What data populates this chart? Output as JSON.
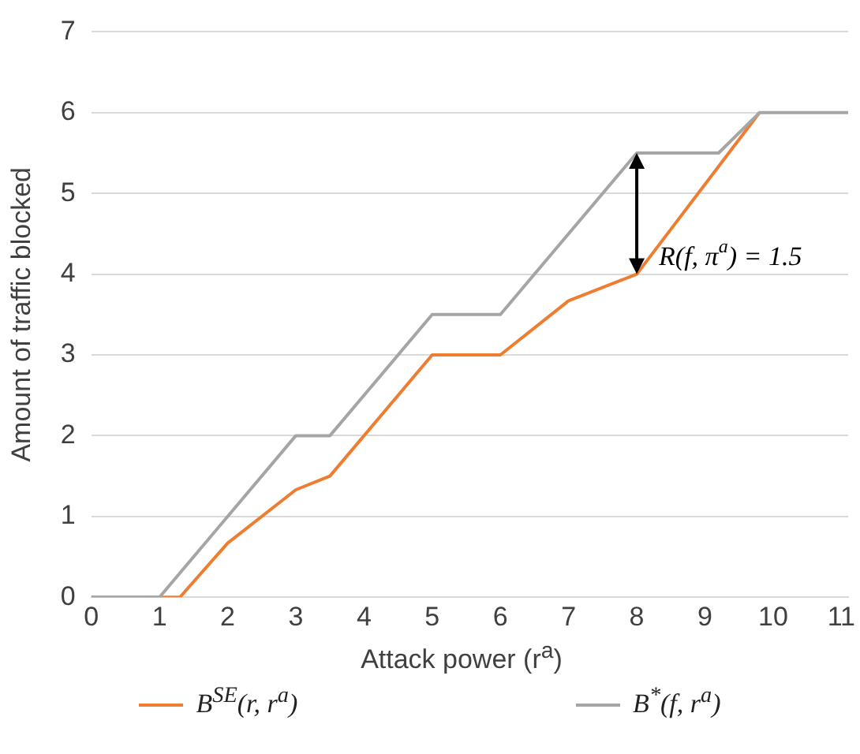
{
  "chart_data": {
    "type": "line",
    "xlabel": "Attack power (r$^{a}$)",
    "ylabel": "Amount of traffic blocked",
    "xlim": [
      0,
      11.1
    ],
    "xticks": [
      0,
      1,
      2,
      3,
      4,
      5,
      6,
      7,
      8,
      9,
      10,
      11
    ],
    "ylim": [
      0,
      7
    ],
    "yticks": [
      0,
      1,
      2,
      3,
      4,
      5,
      6,
      7
    ],
    "grid": "y",
    "legend": "bottom",
    "marker": "none",
    "line_style": "solid",
    "series": [
      {
        "name": "B$^{SE}$(r, r$^{a}$)",
        "color": "#ed7d31",
        "x": [
          0,
          1.3,
          2,
          3,
          3.5,
          5,
          6,
          7,
          8,
          9.8
        ],
        "values": [
          0,
          0,
          0.67,
          1.33,
          1.5,
          3,
          3,
          3.67,
          4,
          6
        ]
      },
      {
        "name": "B$^{*}$(f, r$^{a}$)",
        "color": "#a5a5a5",
        "x": [
          0,
          1,
          3,
          3.5,
          5,
          6,
          8,
          9.2,
          9.8,
          11.1
        ],
        "values": [
          0,
          0,
          2,
          2,
          3.5,
          3.5,
          5.5,
          5.5,
          6,
          6
        ]
      }
    ],
    "annotations": [
      {
        "text": "R(f, π$^{a}$) = 1.5",
        "x": 8,
        "y": 4.2
      }
    ]
  }
}
